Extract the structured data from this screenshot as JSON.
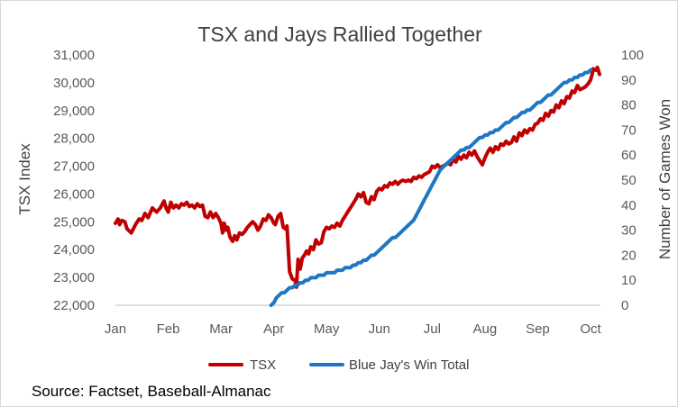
{
  "source_text": "Source: Factset, Baseball-Almanac",
  "chart_data": {
    "type": "line",
    "title": "TSX and Jays Rallied Together",
    "ylabel": "TSX  Index",
    "y2label": "Number of Games Won",
    "ylim": [
      22000,
      31000
    ],
    "y2lim": [
      0,
      100
    ],
    "yticks": [
      "22,000",
      "23,000",
      "24,000",
      "25,000",
      "26,000",
      "27,000",
      "28,000",
      "29,000",
      "30,000",
      "31,000"
    ],
    "y2ticks": [
      "0",
      "10",
      "20",
      "30",
      "40",
      "50",
      "60",
      "70",
      "80",
      "90",
      "100"
    ],
    "xticks": [
      "Jan",
      "Feb",
      "Mar",
      "Apr",
      "May",
      "Jun",
      "Jul",
      "Aug",
      "Sep",
      "Oct"
    ],
    "legend_position": "bottom",
    "grid": false,
    "series": [
      {
        "name": "TSX",
        "axis": "left",
        "color": "#c00000",
        "points": [
          [
            0.0,
            24950
          ],
          [
            0.05,
            25100
          ],
          [
            0.08,
            24900
          ],
          [
            0.12,
            25050
          ],
          [
            0.18,
            25000
          ],
          [
            0.22,
            24750
          ],
          [
            0.3,
            24600
          ],
          [
            0.38,
            24900
          ],
          [
            0.45,
            25100
          ],
          [
            0.5,
            25050
          ],
          [
            0.56,
            25300
          ],
          [
            0.62,
            25150
          ],
          [
            0.7,
            25500
          ],
          [
            0.78,
            25350
          ],
          [
            0.85,
            25500
          ],
          [
            0.92,
            25750
          ],
          [
            0.96,
            25500
          ],
          [
            1.0,
            25350
          ],
          [
            1.05,
            25700
          ],
          [
            1.1,
            25500
          ],
          [
            1.15,
            25600
          ],
          [
            1.2,
            25500
          ],
          [
            1.25,
            25650
          ],
          [
            1.3,
            25600
          ],
          [
            1.35,
            25700
          ],
          [
            1.4,
            25550
          ],
          [
            1.45,
            25600
          ],
          [
            1.5,
            25500
          ],
          [
            1.55,
            25650
          ],
          [
            1.6,
            25550
          ],
          [
            1.65,
            25600
          ],
          [
            1.7,
            25200
          ],
          [
            1.75,
            25150
          ],
          [
            1.8,
            25350
          ],
          [
            1.85,
            25150
          ],
          [
            1.9,
            25300
          ],
          [
            1.95,
            25150
          ],
          [
            2.0,
            24950
          ],
          [
            2.03,
            24600
          ],
          [
            2.06,
            24950
          ],
          [
            2.1,
            24700
          ],
          [
            2.13,
            24800
          ],
          [
            2.17,
            24450
          ],
          [
            2.22,
            24300
          ],
          [
            2.26,
            24500
          ],
          [
            2.3,
            24350
          ],
          [
            2.35,
            24600
          ],
          [
            2.4,
            24550
          ],
          [
            2.45,
            24650
          ],
          [
            2.5,
            24800
          ],
          [
            2.55,
            24900
          ],
          [
            2.6,
            25000
          ],
          [
            2.65,
            24900
          ],
          [
            2.7,
            24700
          ],
          [
            2.75,
            24850
          ],
          [
            2.8,
            25100
          ],
          [
            2.85,
            25050
          ],
          [
            2.9,
            25250
          ],
          [
            2.95,
            25150
          ],
          [
            3.0,
            24950
          ],
          [
            3.03,
            24900
          ],
          [
            3.08,
            25200
          ],
          [
            3.13,
            25300
          ],
          [
            3.18,
            24800
          ],
          [
            3.22,
            24750
          ],
          [
            3.25,
            24850
          ],
          [
            3.3,
            23200
          ],
          [
            3.35,
            22950
          ],
          [
            3.4,
            22900
          ],
          [
            3.43,
            22650
          ],
          [
            3.46,
            23650
          ],
          [
            3.5,
            23300
          ],
          [
            3.54,
            23700
          ],
          [
            3.58,
            23800
          ],
          [
            3.62,
            23950
          ],
          [
            3.66,
            23850
          ],
          [
            3.7,
            24100
          ],
          [
            3.75,
            24000
          ],
          [
            3.8,
            24350
          ],
          [
            3.85,
            24200
          ],
          [
            3.9,
            24250
          ],
          [
            3.95,
            24650
          ],
          [
            4.0,
            24800
          ],
          [
            4.05,
            24750
          ],
          [
            4.1,
            24850
          ],
          [
            4.15,
            24800
          ],
          [
            4.2,
            24950
          ],
          [
            4.25,
            24850
          ],
          [
            4.3,
            25050
          ],
          [
            4.35,
            25200
          ],
          [
            4.4,
            25350
          ],
          [
            4.45,
            25500
          ],
          [
            4.5,
            25650
          ],
          [
            4.55,
            25800
          ],
          [
            4.6,
            26000
          ],
          [
            4.65,
            25900
          ],
          [
            4.7,
            26050
          ],
          [
            4.75,
            25700
          ],
          [
            4.8,
            25650
          ],
          [
            4.85,
            25900
          ],
          [
            4.9,
            25800
          ],
          [
            4.95,
            26100
          ],
          [
            5.0,
            26200
          ],
          [
            5.05,
            26150
          ],
          [
            5.1,
            26300
          ],
          [
            5.15,
            26250
          ],
          [
            5.2,
            26400
          ],
          [
            5.25,
            26350
          ],
          [
            5.3,
            26450
          ],
          [
            5.35,
            26350
          ],
          [
            5.4,
            26450
          ],
          [
            5.45,
            26500
          ],
          [
            5.5,
            26450
          ],
          [
            5.55,
            26500
          ],
          [
            5.6,
            26450
          ],
          [
            5.65,
            26600
          ],
          [
            5.7,
            26550
          ],
          [
            5.75,
            26650
          ],
          [
            5.8,
            26600
          ],
          [
            5.85,
            26700
          ],
          [
            5.9,
            26750
          ],
          [
            5.95,
            26800
          ],
          [
            6.0,
            27000
          ],
          [
            6.05,
            26950
          ],
          [
            6.1,
            27050
          ],
          [
            6.15,
            26950
          ],
          [
            6.2,
            27000
          ],
          [
            6.25,
            27050
          ],
          [
            6.3,
            27100
          ],
          [
            6.35,
            27050
          ],
          [
            6.4,
            27250
          ],
          [
            6.45,
            27150
          ],
          [
            6.5,
            27350
          ],
          [
            6.55,
            27250
          ],
          [
            6.6,
            27400
          ],
          [
            6.65,
            27300
          ],
          [
            6.7,
            27500
          ],
          [
            6.75,
            27400
          ],
          [
            6.8,
            27550
          ],
          [
            6.85,
            27350
          ],
          [
            6.9,
            27200
          ],
          [
            6.95,
            27050
          ],
          [
            7.0,
            27300
          ],
          [
            7.05,
            27500
          ],
          [
            7.1,
            27650
          ],
          [
            7.15,
            27500
          ],
          [
            7.2,
            27700
          ],
          [
            7.25,
            27600
          ],
          [
            7.3,
            27800
          ],
          [
            7.35,
            27750
          ],
          [
            7.4,
            27900
          ],
          [
            7.45,
            27800
          ],
          [
            7.5,
            27850
          ],
          [
            7.55,
            28050
          ],
          [
            7.6,
            27900
          ],
          [
            7.65,
            28200
          ],
          [
            7.7,
            28100
          ],
          [
            7.75,
            28300
          ],
          [
            7.8,
            28200
          ],
          [
            7.85,
            28350
          ],
          [
            7.9,
            28300
          ],
          [
            7.95,
            28500
          ],
          [
            8.0,
            28550
          ],
          [
            8.05,
            28700
          ],
          [
            8.1,
            28650
          ],
          [
            8.15,
            28900
          ],
          [
            8.2,
            28800
          ],
          [
            8.25,
            29000
          ],
          [
            8.3,
            28950
          ],
          [
            8.35,
            29200
          ],
          [
            8.4,
            29100
          ],
          [
            8.45,
            29350
          ],
          [
            8.5,
            29250
          ],
          [
            8.55,
            29500
          ],
          [
            8.6,
            29450
          ],
          [
            8.65,
            29700
          ],
          [
            8.7,
            29650
          ],
          [
            8.75,
            29900
          ],
          [
            8.8,
            29750
          ],
          [
            8.85,
            29800
          ],
          [
            8.9,
            29850
          ],
          [
            8.95,
            29950
          ],
          [
            9.0,
            30100
          ],
          [
            9.03,
            30300
          ],
          [
            9.05,
            30500
          ],
          [
            9.1,
            30450
          ],
          [
            9.13,
            30550
          ],
          [
            9.17,
            30300
          ]
        ]
      },
      {
        "name": "Blue Jay's Win Total",
        "axis": "right",
        "color": "#1f77c4",
        "points": [
          [
            2.95,
            0
          ],
          [
            3.0,
            1
          ],
          [
            3.05,
            3
          ],
          [
            3.1,
            4
          ],
          [
            3.15,
            5
          ],
          [
            3.2,
            5
          ],
          [
            3.25,
            6
          ],
          [
            3.3,
            7
          ],
          [
            3.35,
            7
          ],
          [
            3.4,
            8
          ],
          [
            3.45,
            8
          ],
          [
            3.5,
            9
          ],
          [
            3.55,
            9
          ],
          [
            3.6,
            10
          ],
          [
            3.65,
            10
          ],
          [
            3.7,
            11
          ],
          [
            3.75,
            11
          ],
          [
            3.8,
            11
          ],
          [
            3.85,
            12
          ],
          [
            3.9,
            12
          ],
          [
            3.95,
            12
          ],
          [
            4.0,
            13
          ],
          [
            4.05,
            13
          ],
          [
            4.1,
            13
          ],
          [
            4.15,
            13
          ],
          [
            4.2,
            14
          ],
          [
            4.25,
            14
          ],
          [
            4.3,
            14
          ],
          [
            4.35,
            15
          ],
          [
            4.4,
            15
          ],
          [
            4.45,
            15
          ],
          [
            4.5,
            16
          ],
          [
            4.55,
            16
          ],
          [
            4.6,
            17
          ],
          [
            4.65,
            17
          ],
          [
            4.7,
            18
          ],
          [
            4.75,
            18
          ],
          [
            4.8,
            19
          ],
          [
            4.85,
            20
          ],
          [
            4.9,
            20
          ],
          [
            4.95,
            21
          ],
          [
            5.0,
            22
          ],
          [
            5.05,
            23
          ],
          [
            5.1,
            24
          ],
          [
            5.15,
            25
          ],
          [
            5.2,
            26
          ],
          [
            5.25,
            27
          ],
          [
            5.3,
            27
          ],
          [
            5.35,
            28
          ],
          [
            5.4,
            29
          ],
          [
            5.45,
            30
          ],
          [
            5.5,
            31
          ],
          [
            5.55,
            32
          ],
          [
            5.6,
            33
          ],
          [
            5.65,
            34
          ],
          [
            5.7,
            36
          ],
          [
            5.75,
            38
          ],
          [
            5.8,
            40
          ],
          [
            5.85,
            42
          ],
          [
            5.9,
            44
          ],
          [
            5.95,
            46
          ],
          [
            6.0,
            48
          ],
          [
            6.05,
            50
          ],
          [
            6.1,
            52
          ],
          [
            6.15,
            54
          ],
          [
            6.2,
            55
          ],
          [
            6.25,
            56
          ],
          [
            6.3,
            57
          ],
          [
            6.35,
            58
          ],
          [
            6.4,
            59
          ],
          [
            6.45,
            60
          ],
          [
            6.5,
            61
          ],
          [
            6.55,
            62
          ],
          [
            6.6,
            62
          ],
          [
            6.65,
            63
          ],
          [
            6.7,
            63
          ],
          [
            6.75,
            64
          ],
          [
            6.8,
            65
          ],
          [
            6.85,
            66
          ],
          [
            6.9,
            67
          ],
          [
            6.95,
            67
          ],
          [
            7.0,
            68
          ],
          [
            7.05,
            68
          ],
          [
            7.1,
            69
          ],
          [
            7.15,
            69
          ],
          [
            7.2,
            70
          ],
          [
            7.25,
            70
          ],
          [
            7.3,
            71
          ],
          [
            7.35,
            72
          ],
          [
            7.4,
            73
          ],
          [
            7.45,
            73
          ],
          [
            7.5,
            74
          ],
          [
            7.55,
            75
          ],
          [
            7.6,
            75
          ],
          [
            7.65,
            76
          ],
          [
            7.7,
            77
          ],
          [
            7.75,
            77
          ],
          [
            7.8,
            78
          ],
          [
            7.85,
            78
          ],
          [
            7.9,
            79
          ],
          [
            7.95,
            80
          ],
          [
            8.0,
            81
          ],
          [
            8.05,
            81
          ],
          [
            8.1,
            82
          ],
          [
            8.15,
            83
          ],
          [
            8.2,
            84
          ],
          [
            8.25,
            84
          ],
          [
            8.3,
            85
          ],
          [
            8.35,
            86
          ],
          [
            8.4,
            87
          ],
          [
            8.45,
            88
          ],
          [
            8.5,
            89
          ],
          [
            8.55,
            89
          ],
          [
            8.6,
            90
          ],
          [
            8.65,
            90
          ],
          [
            8.7,
            91
          ],
          [
            8.75,
            91
          ],
          [
            8.8,
            92
          ],
          [
            8.85,
            92
          ],
          [
            8.9,
            93
          ],
          [
            8.95,
            93
          ],
          [
            9.0,
            94
          ]
        ]
      }
    ]
  }
}
